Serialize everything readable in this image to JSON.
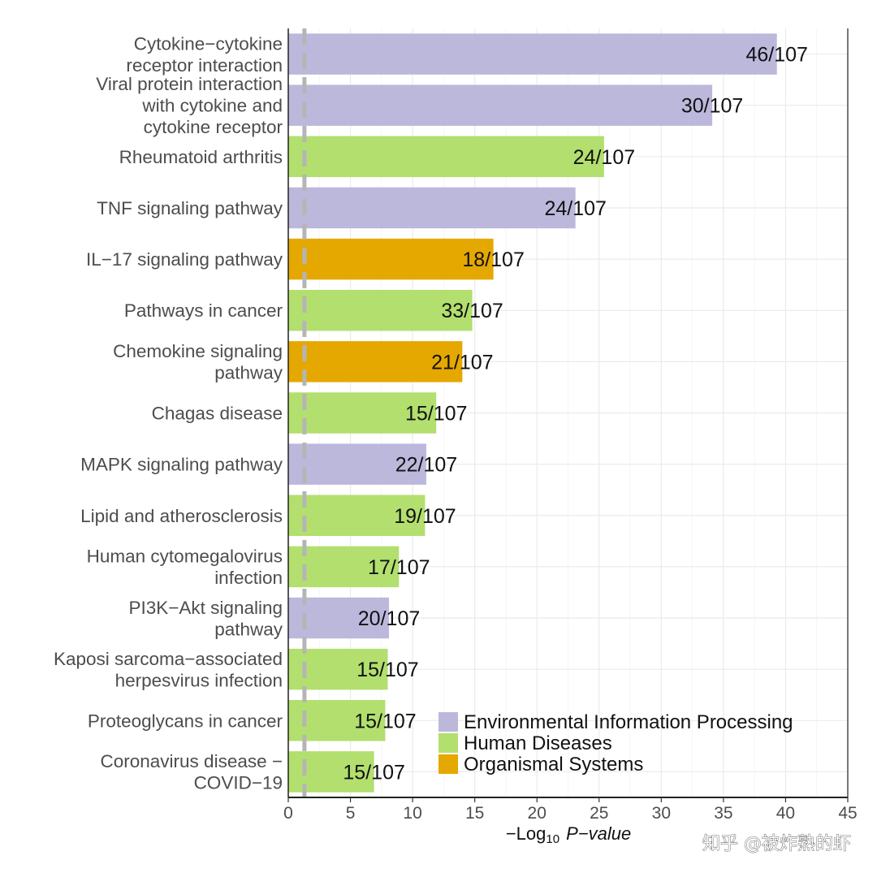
{
  "chart_data": {
    "type": "bar",
    "orientation": "horizontal",
    "categories": [
      [
        "Cytokine−cytokine",
        "receptor interaction"
      ],
      [
        "Viral protein interaction",
        "with cytokine and",
        "cytokine receptor"
      ],
      [
        "Rheumatoid arthritis"
      ],
      [
        "TNF signaling pathway"
      ],
      [
        "IL−17 signaling pathway"
      ],
      [
        "Pathways in cancer"
      ],
      [
        "Chemokine signaling",
        "pathway"
      ],
      [
        "Chagas disease"
      ],
      [
        "MAPK signaling pathway"
      ],
      [
        "Lipid and atherosclerosis"
      ],
      [
        "Human cytomegalovirus",
        "infection"
      ],
      [
        "PI3K−Akt signaling",
        "pathway"
      ],
      [
        "Kaposi sarcoma−associated",
        "herpesvirus infection"
      ],
      [
        "Proteoglycans in cancer"
      ],
      [
        "Coronavirus disease −",
        "COVID−19"
      ]
    ],
    "values": [
      39.3,
      34.1,
      25.4,
      23.1,
      16.5,
      14.8,
      14.0,
      11.9,
      11.1,
      11.0,
      8.9,
      8.1,
      8.0,
      7.8,
      6.9
    ],
    "bar_labels": [
      "46/107",
      "30/107",
      "24/107",
      "24/107",
      "18/107",
      "33/107",
      "21/107",
      "15/107",
      "22/107",
      "19/107",
      "17/107",
      "20/107",
      "15/107",
      "15/107",
      "15/107"
    ],
    "groups": [
      "Environmental Information Processing",
      "Environmental Information Processing",
      "Human Diseases",
      "Environmental Information Processing",
      "Organismal Systems",
      "Human Diseases",
      "Organismal Systems",
      "Human Diseases",
      "Environmental Information Processing",
      "Human Diseases",
      "Human Diseases",
      "Environmental Information Processing",
      "Human Diseases",
      "Human Diseases",
      "Human Diseases"
    ],
    "legend": [
      {
        "name": "Environmental Information Processing",
        "color": "#bcb8dc"
      },
      {
        "name": "Human Diseases",
        "color": "#b2df6e"
      },
      {
        "name": "Organismal Systems",
        "color": "#e5a800"
      }
    ],
    "legend_position": "bottom-right",
    "x_ticks": [
      "0",
      "5",
      "10",
      "15",
      "20",
      "25",
      "30",
      "35",
      "40",
      "45"
    ],
    "xlim": [
      0,
      45
    ],
    "xlabel_prefix": "−Log",
    "xlabel_sub": "10",
    "xlabel_italic": "P−value",
    "threshold_line": 1.3,
    "grid": true
  },
  "watermark": "知乎 @被炸熟的虾"
}
